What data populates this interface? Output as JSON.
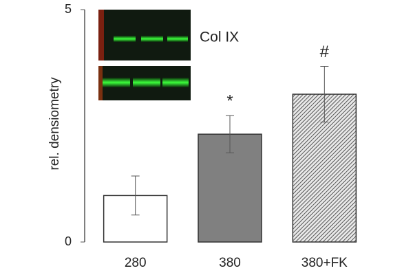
{
  "chart_data": {
    "type": "bar",
    "y_label": "rel. densiometry",
    "inset_label": "Col IX",
    "categories": [
      "280",
      "380",
      "380+FK"
    ],
    "values": [
      1.0,
      2.32,
      3.18
    ],
    "errors": [
      0.42,
      0.4,
      0.6
    ],
    "annotations": [
      null,
      "*",
      "#"
    ],
    "colors": [
      "#ffffff",
      "#808080",
      "#d0d0d0"
    ],
    "hatch": [
      false,
      false,
      true
    ],
    "ylim": [
      0,
      5
    ],
    "yticks": [
      0,
      5
    ],
    "grid": false
  }
}
